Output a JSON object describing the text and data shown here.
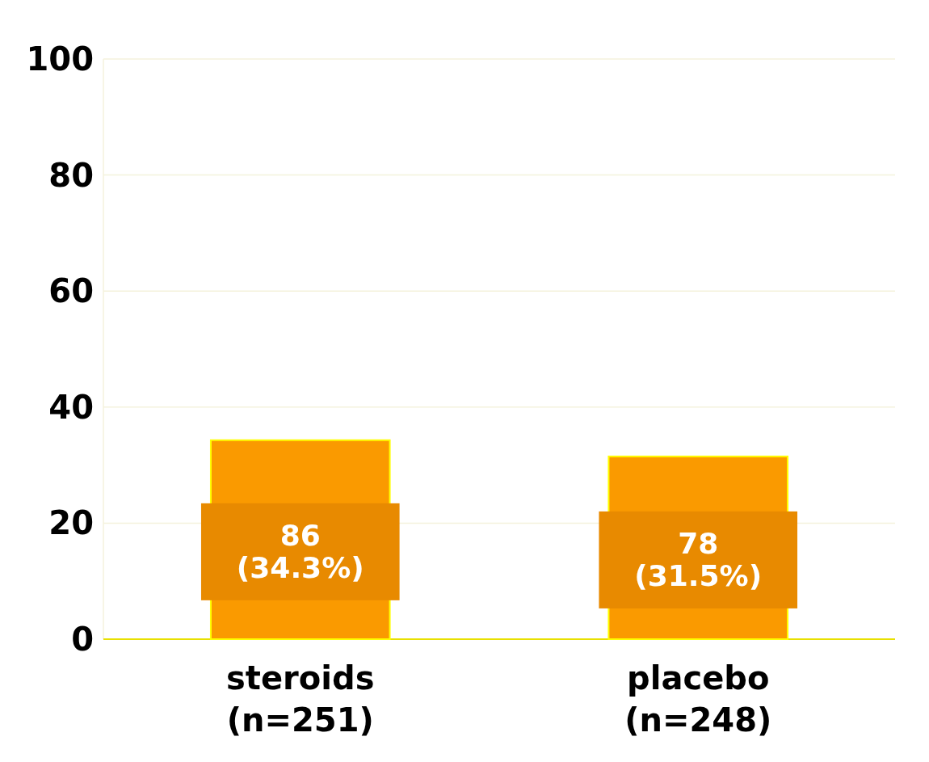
{
  "chart_data": {
    "type": "bar",
    "categories": [
      "steroids\n(n=251)",
      "placebo\n(n=248)"
    ],
    "values": [
      34.3,
      31.5
    ],
    "value_labels": [
      "86\n(34.3%)",
      "78\n(31.5%)"
    ],
    "color": "#fa9a00",
    "ylim": [
      0,
      100
    ],
    "yticks": [
      0,
      20,
      40,
      60,
      80,
      100
    ],
    "grid": "y"
  }
}
